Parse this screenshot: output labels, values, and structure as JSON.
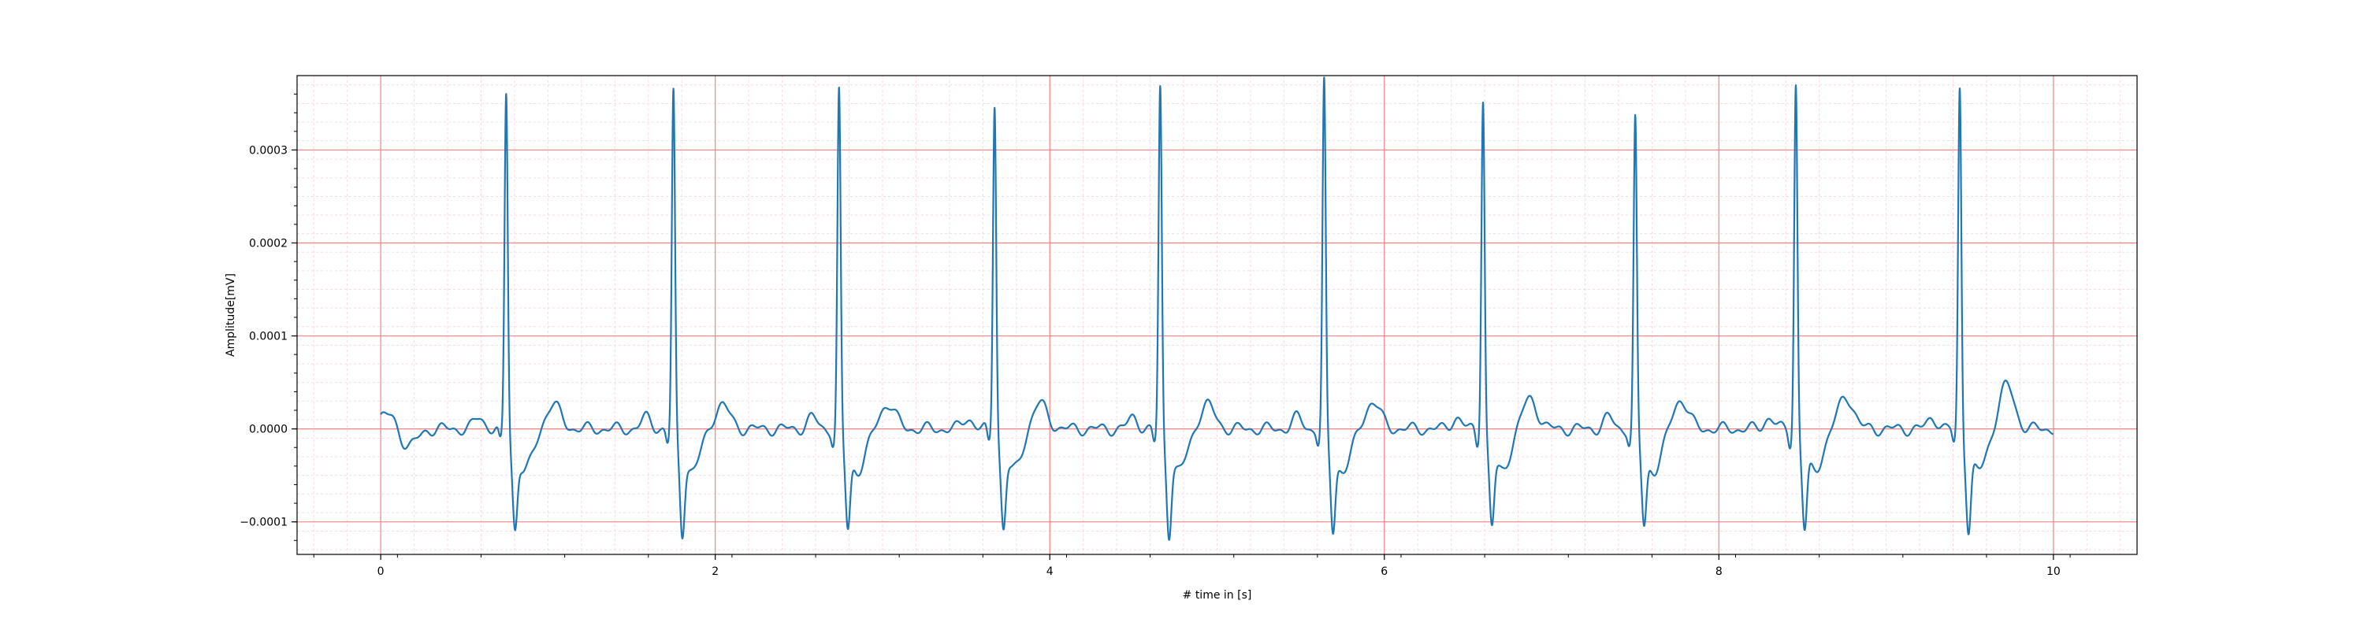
{
  "chart_data": {
    "type": "line",
    "title": "",
    "xlabel": "# time in [s]",
    "ylabel": "Amplitude[mV]",
    "xlim": [
      -0.5,
      10.5
    ],
    "ylim": [
      -0.000135,
      0.00038
    ],
    "x_ticks": [
      0,
      2,
      4,
      6,
      8,
      10
    ],
    "x_tick_labels": [
      "0",
      "2",
      "4",
      "6",
      "8",
      "10"
    ],
    "y_ticks": [
      -0.0001,
      0.0,
      0.0001,
      0.0002,
      0.0003
    ],
    "y_tick_labels": [
      "−0.0001",
      "0.0000",
      "0.0001",
      "0.0002",
      "0.0003"
    ],
    "grid": true,
    "grid_major_color": "#ff8080",
    "grid_minor_color": "#ffd6dd",
    "series": [
      {
        "name": "",
        "color": "#1f77b4",
        "beats": [
          {
            "t": 0.75,
            "peak": 0.000345,
            "min": -0.000104
          },
          {
            "t": 1.75,
            "peak": 0.000345,
            "min": -0.000109
          },
          {
            "t": 2.74,
            "peak": 0.000345,
            "min": -0.000104
          },
          {
            "t": 3.67,
            "peak": 0.000335,
            "min": -0.000104
          },
          {
            "t": 4.66,
            "peak": 0.00035,
            "min": -0.000109
          },
          {
            "t": 5.64,
            "peak": 0.000355,
            "min": -0.000106
          },
          {
            "t": 6.59,
            "peak": 0.00034,
            "min": -0.000102
          },
          {
            "t": 7.5,
            "peak": 0.000315,
            "min": -0.0001
          },
          {
            "t": 8.46,
            "peak": 0.000355,
            "min": -0.000106
          },
          {
            "t": 9.44,
            "peak": 0.00035,
            "min": -0.000106
          }
        ],
        "t_waves": [
          {
            "t": 1.03,
            "amp": 2.6e-05
          },
          {
            "t": 2.04,
            "amp": 2.6e-05
          },
          {
            "t": 3.03,
            "amp": 2.7e-05
          },
          {
            "t": 3.94,
            "amp": 2.7e-05
          },
          {
            "t": 4.94,
            "amp": 2.6e-05
          },
          {
            "t": 5.93,
            "amp": 2.9e-05
          },
          {
            "t": 6.87,
            "amp": 3.2e-05
          },
          {
            "t": 7.77,
            "amp": 3.2e-05
          },
          {
            "t": 8.76,
            "amp": 3.5e-05
          },
          {
            "t": 9.72,
            "amp": 4.7e-05
          }
        ],
        "x_start": 0.0,
        "x_end": 10.0,
        "start_value": 1e-05,
        "end_value": 0.0
      }
    ]
  }
}
